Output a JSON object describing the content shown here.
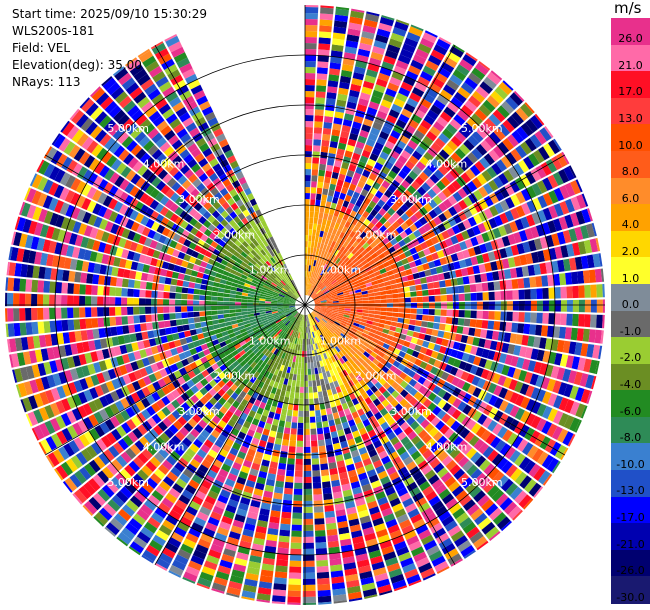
{
  "header": {
    "start_time": "Start time: 2025/09/10 15:30:29",
    "instrument": "WLS200s-181",
    "field": "Field: VEL",
    "elevation": "Elevation(deg): 35.00",
    "nrays": "NRays: 113"
  },
  "colorbar": {
    "unit": "m/s",
    "labels": [
      "26.0",
      "21.0",
      "17.0",
      "13.0",
      "10.0",
      "8.0",
      "6.0",
      "4.0",
      "2.0",
      "1.0",
      "0.0",
      "-1.0",
      "-2.0",
      "-4.0",
      "-6.0",
      "-8.0",
      "-10.0",
      "-13.0",
      "-17.0",
      "-21.0",
      "-26.0",
      "-30.0"
    ],
    "colors": [
      "#e8308c",
      "#ff6aa8",
      "#ff0f25",
      "#ff3c3c",
      "#ff5000",
      "#ff5c1a",
      "#ff8c2a",
      "#ffa200",
      "#ffd700",
      "#ffff2a",
      "#7f8c99",
      "#6a6a6a",
      "#9acd32",
      "#6b8e23",
      "#228b22",
      "#2e8b57",
      "#3a80d0",
      "#2050c8",
      "#0000ff",
      "#0000b0",
      "#000070",
      "#191970"
    ]
  },
  "chart_data": {
    "type": "ppi",
    "field": "VEL",
    "elevation_deg": 35.0,
    "n_rays": 113,
    "range_rings_km": [
      1.0,
      2.0,
      3.0,
      4.0,
      5.0
    ],
    "range_ring_labels": [
      "1.00km",
      "2.00km",
      "3.00km",
      "4.00km",
      "5.00km"
    ],
    "max_range_km": 6.0,
    "azimuth_gap_deg": [
      335,
      360
    ],
    "grid_spokes_deg": [
      0,
      30,
      60,
      90,
      120,
      150
    ],
    "dominant_velocity_by_sector": [
      {
        "sector": "east",
        "azimuth_deg": 90,
        "velocity_ms": 10.0
      },
      {
        "sector": "south-east",
        "azimuth_deg": 150,
        "velocity_ms": 4.0
      },
      {
        "sector": "west",
        "azimuth_deg": 270,
        "velocity_ms": -8.0
      },
      {
        "sector": "south-west",
        "azimuth_deg": 225,
        "velocity_ms": -6.0
      }
    ],
    "noise_range_km": 2.0
  }
}
